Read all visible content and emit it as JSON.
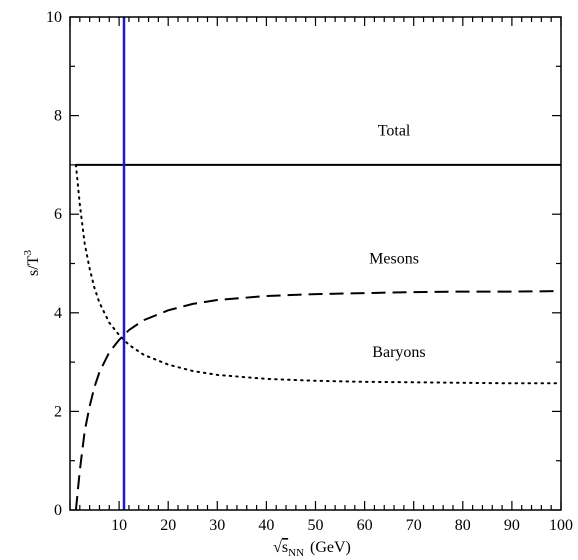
{
  "chart_data": {
    "type": "line",
    "xlabel_prefix": "√",
    "xlabel_main": "s",
    "xlabel_sub": "NN",
    "xlabel_unit": "(GeV)",
    "ylabel_main": "s/T",
    "ylabel_sup": "3",
    "xlim": [
      0,
      100
    ],
    "ylim": [
      0,
      10
    ],
    "xticks": [
      10,
      20,
      30,
      40,
      50,
      60,
      70,
      80,
      90,
      100
    ],
    "yticks": [
      0,
      2,
      4,
      6,
      8,
      10
    ],
    "grid": false,
    "vertical_line": {
      "x": 11,
      "color": "#1a1acc"
    },
    "annotations": [
      {
        "text": "Total",
        "x": 66,
        "y": 7.6
      },
      {
        "text": "Mesons",
        "x": 66,
        "y": 5.0
      },
      {
        "text": "Baryons",
        "x": 67,
        "y": 3.1
      }
    ],
    "series": [
      {
        "style": "solid",
        "color": "#000000",
        "x": [
          1.2,
          10,
          20,
          40,
          60,
          80,
          100
        ],
        "y": [
          7.0,
          7.0,
          7.0,
          7.0,
          7.0,
          7.0,
          7.0
        ]
      },
      {
        "style": "dashed",
        "color": "#000000",
        "x": [
          1.2,
          2,
          3,
          4,
          5,
          6,
          8,
          10,
          12,
          15,
          20,
          25,
          30,
          40,
          50,
          60,
          70,
          80,
          90,
          100
        ],
        "y": [
          0.0,
          0.8,
          1.6,
          2.1,
          2.5,
          2.8,
          3.2,
          3.45,
          3.65,
          3.85,
          4.05,
          4.18,
          4.26,
          4.34,
          4.38,
          4.4,
          4.42,
          4.43,
          4.43,
          4.44
        ]
      },
      {
        "style": "dotted",
        "color": "#000000",
        "x": [
          1.2,
          2,
          3,
          4,
          5,
          6,
          8,
          10,
          12,
          15,
          20,
          25,
          30,
          40,
          50,
          60,
          70,
          80,
          90,
          100
        ],
        "y": [
          7.0,
          6.2,
          5.4,
          4.9,
          4.5,
          4.2,
          3.8,
          3.55,
          3.35,
          3.15,
          2.95,
          2.82,
          2.74,
          2.66,
          2.62,
          2.6,
          2.59,
          2.58,
          2.57,
          2.57
        ]
      }
    ]
  }
}
